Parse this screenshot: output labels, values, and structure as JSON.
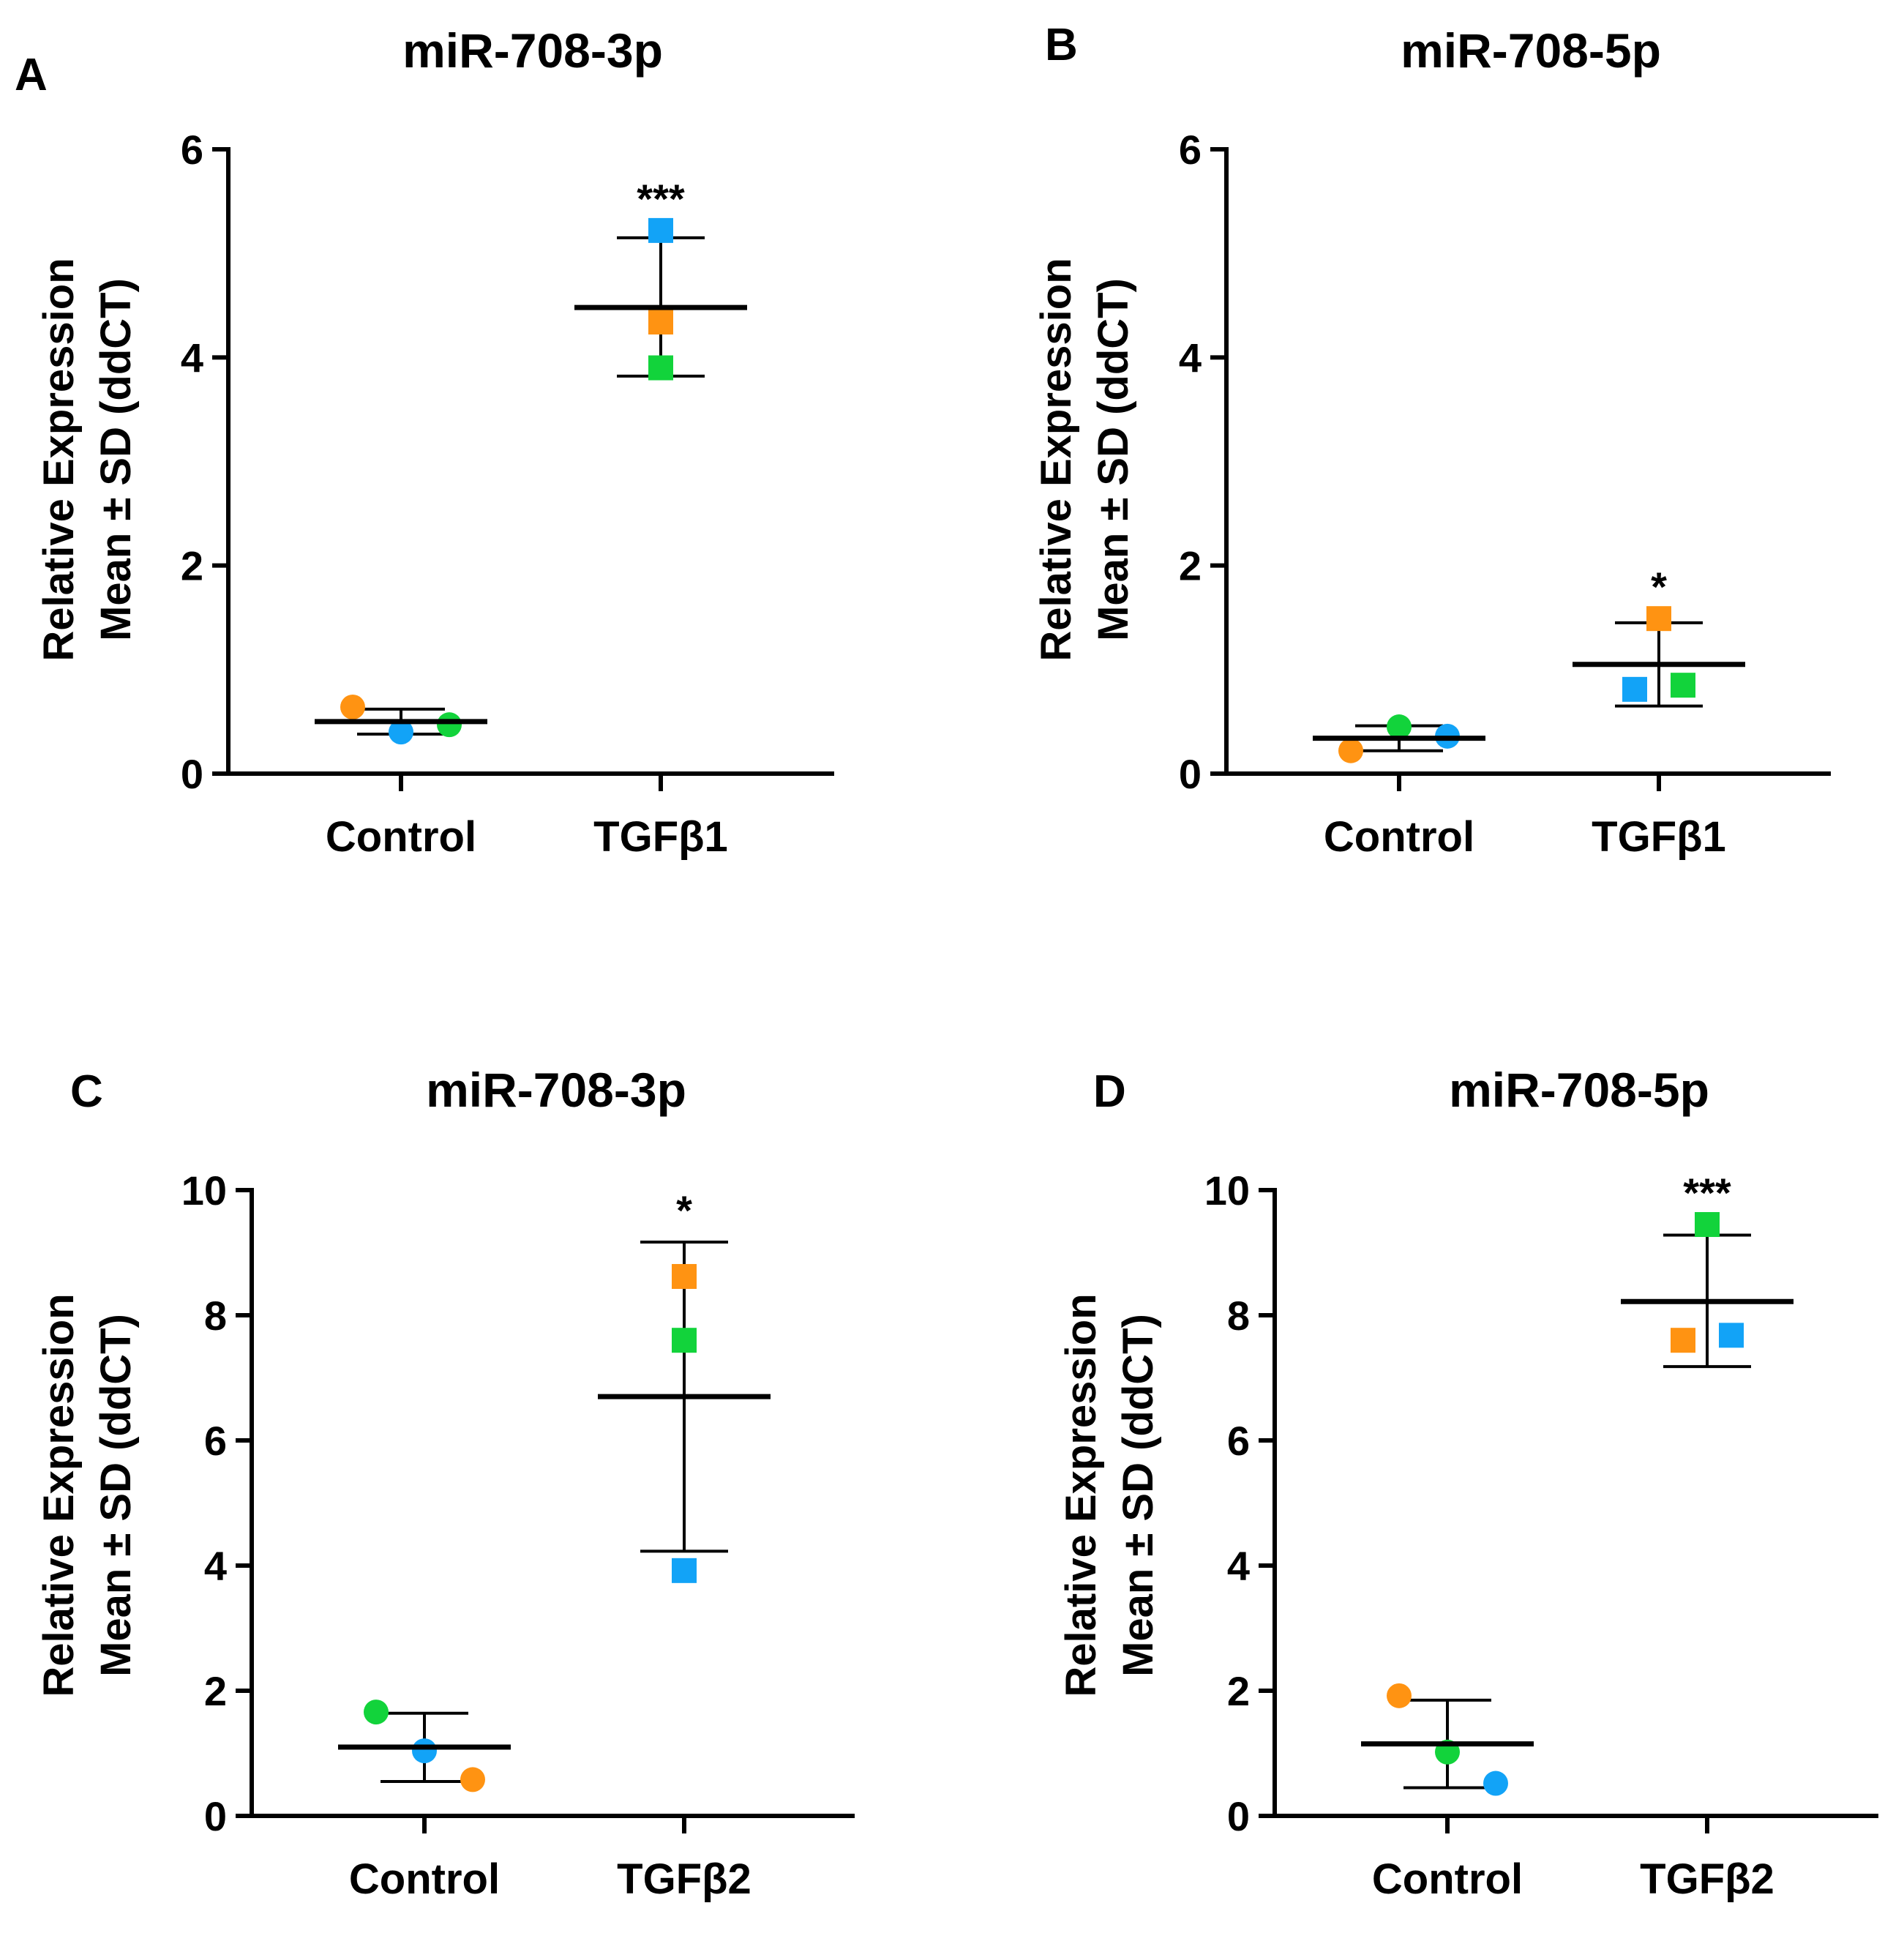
{
  "figure": {
    "colors": {
      "orange": "#FF9312",
      "blue": "#12A3F7",
      "green": "#12D33B",
      "axis": "#000000"
    }
  },
  "chart_data": [
    {
      "panel": "A",
      "type": "scatter",
      "title": "miR-708-3p",
      "ylabel_line1": "Relative Expression",
      "ylabel_line2": "Mean ± SD (ddCT)",
      "ylim": [
        0,
        6
      ],
      "yticks": [
        "0",
        "2",
        "4",
        "6"
      ],
      "categories": [
        "Control",
        "TGFβ1"
      ],
      "groups": [
        {
          "category": "Control",
          "marker": "circle",
          "mean": 0.5,
          "sd_low": 0.38,
          "sd_high": 0.62,
          "points": [
            {
              "color": "orange",
              "y": 0.64
            },
            {
              "color": "blue",
              "y": 0.4
            },
            {
              "color": "green",
              "y": 0.47
            }
          ]
        },
        {
          "category": "TGFβ1",
          "marker": "square",
          "mean": 4.48,
          "sd_low": 3.82,
          "sd_high": 5.15,
          "annotation": "***",
          "points": [
            {
              "color": "blue",
              "y": 5.22
            },
            {
              "color": "orange",
              "y": 4.34
            },
            {
              "color": "green",
              "y": 3.9
            }
          ]
        }
      ]
    },
    {
      "panel": "B",
      "type": "scatter",
      "title": "miR-708-5p",
      "ylabel_line1": "Relative Expression",
      "ylabel_line2": "Mean ± SD (ddCT)",
      "ylim": [
        0,
        6
      ],
      "yticks": [
        "0",
        "2",
        "4",
        "6"
      ],
      "categories": [
        "Control",
        "TGFβ1"
      ],
      "groups": [
        {
          "category": "Control",
          "marker": "circle",
          "mean": 0.34,
          "sd_low": 0.22,
          "sd_high": 0.46,
          "points": [
            {
              "color": "orange",
              "y": 0.22
            },
            {
              "color": "green",
              "y": 0.45
            },
            {
              "color": "blue",
              "y": 0.36
            }
          ]
        },
        {
          "category": "TGFβ1",
          "marker": "square",
          "mean": 1.05,
          "sd_low": 0.65,
          "sd_high": 1.45,
          "annotation": "*",
          "points": [
            {
              "color": "orange",
              "y": 1.49
            },
            {
              "color": "blue",
              "y": 0.81
            },
            {
              "color": "green",
              "y": 0.85
            }
          ]
        }
      ]
    },
    {
      "panel": "C",
      "type": "scatter",
      "title": "miR-708-3p",
      "ylabel_line1": "Relative Expression",
      "ylabel_line2": "Mean ± SD (ddCT)",
      "ylim": [
        0,
        10
      ],
      "yticks": [
        "0",
        "2",
        "4",
        "6",
        "8",
        "10"
      ],
      "categories": [
        "Control",
        "TGFβ2"
      ],
      "groups": [
        {
          "category": "Control",
          "marker": "circle",
          "mean": 1.1,
          "sd_low": 0.55,
          "sd_high": 1.64,
          "points": [
            {
              "color": "green",
              "y": 1.66
            },
            {
              "color": "blue",
              "y": 1.04
            },
            {
              "color": "orange",
              "y": 0.58
            }
          ]
        },
        {
          "category": "TGFβ2",
          "marker": "square",
          "mean": 6.7,
          "sd_low": 4.23,
          "sd_high": 9.17,
          "annotation": "*",
          "points": [
            {
              "color": "orange",
              "y": 8.62
            },
            {
              "color": "green",
              "y": 7.6
            },
            {
              "color": "blue",
              "y": 3.92
            }
          ]
        }
      ]
    },
    {
      "panel": "D",
      "type": "scatter",
      "title": "miR-708-5p",
      "ylabel_line1": "Relative Expression",
      "ylabel_line2": "Mean ± SD (ddCT)",
      "ylim": [
        0,
        10
      ],
      "yticks": [
        "0",
        "2",
        "4",
        "6",
        "8",
        "10"
      ],
      "categories": [
        "Control",
        "TGFβ2"
      ],
      "groups": [
        {
          "category": "Control",
          "marker": "circle",
          "mean": 1.15,
          "sd_low": 0.45,
          "sd_high": 1.85,
          "points": [
            {
              "color": "orange",
              "y": 1.92
            },
            {
              "color": "green",
              "y": 1.02
            },
            {
              "color": "blue",
              "y": 0.52
            }
          ]
        },
        {
          "category": "TGFβ2",
          "marker": "square",
          "mean": 8.22,
          "sd_low": 7.18,
          "sd_high": 9.28,
          "annotation": "***",
          "points": [
            {
              "color": "green",
              "y": 9.45
            },
            {
              "color": "orange",
              "y": 7.6
            },
            {
              "color": "blue",
              "y": 7.68
            }
          ]
        }
      ]
    }
  ]
}
